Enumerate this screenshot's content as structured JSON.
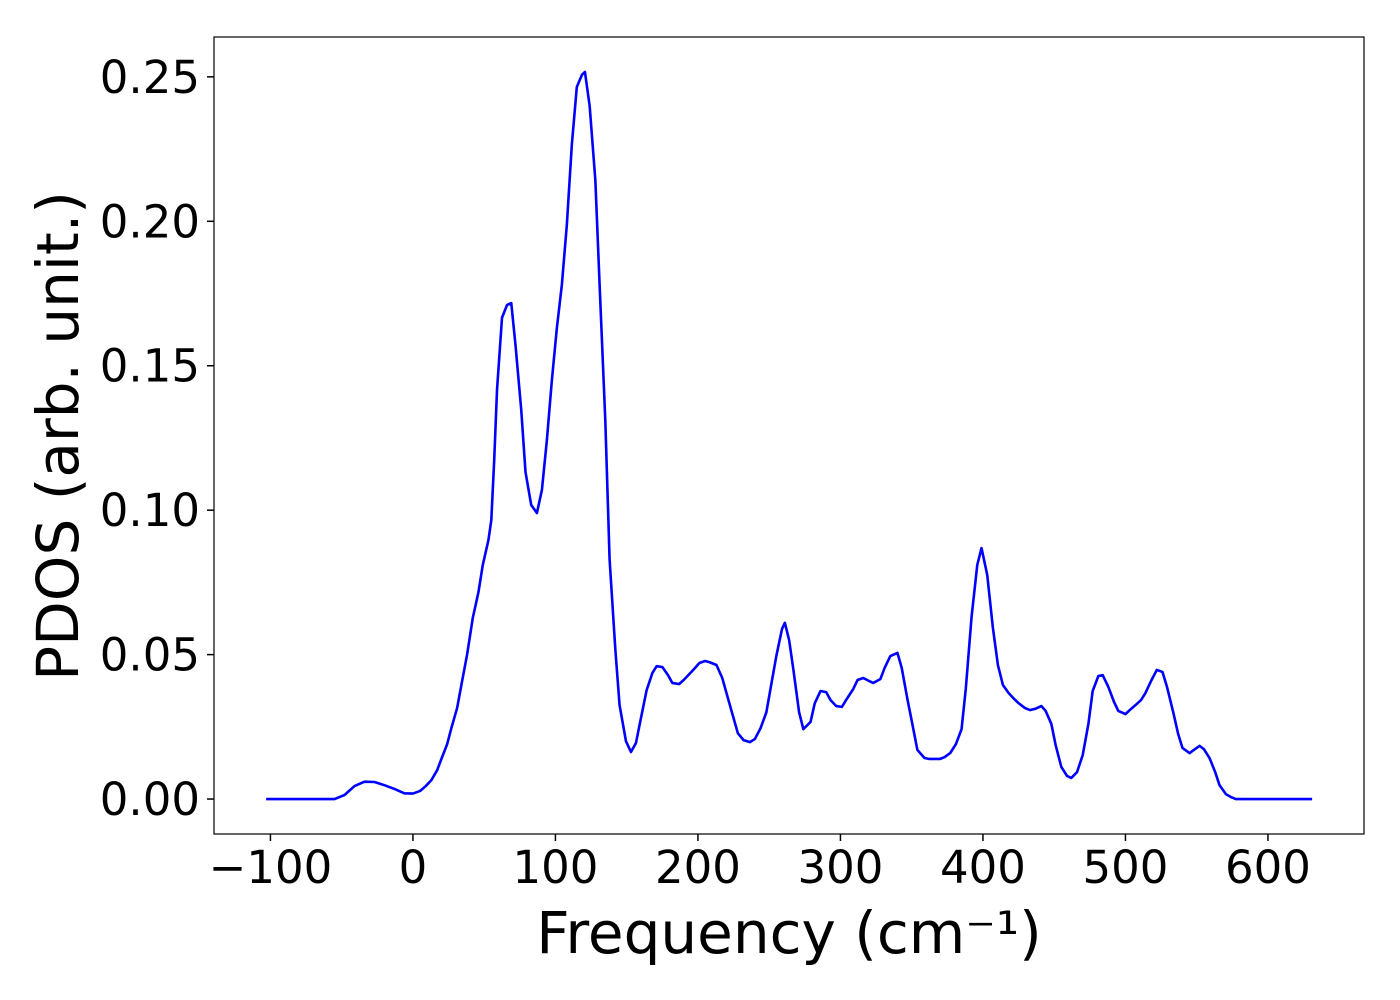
{
  "chart_data": {
    "type": "line",
    "x_label": "Frequency (cm⁻¹)",
    "y_label": "PDOS (arb. unit.)",
    "x": [
      -103,
      -55,
      -48,
      -41,
      -34,
      -27,
      -20,
      -13,
      -6,
      0,
      5,
      9,
      13,
      17,
      20,
      24,
      27,
      31,
      34,
      38,
      42,
      46,
      49,
      53,
      55,
      57,
      59,
      62.5,
      66,
      69,
      72,
      76,
      79,
      83,
      87,
      90.5,
      94,
      97.5,
      101,
      104.5,
      108,
      111.5,
      115,
      118.6,
      120.7,
      124,
      128,
      131,
      135,
      138,
      142,
      145,
      149.5,
      153,
      156.5,
      160,
      164,
      168,
      171,
      175,
      179,
      182,
      186.7,
      190,
      194,
      198,
      201,
      205,
      208,
      213,
      217,
      221,
      225,
      228,
      232,
      236.5,
      240,
      244,
      248,
      251,
      255,
      259,
      261,
      264,
      267,
      271,
      274,
      279,
      282,
      286,
      290,
      293,
      297,
      301,
      304,
      309,
      312,
      316,
      320,
      323,
      328,
      331,
      335,
      340,
      343,
      347,
      351,
      354,
      359,
      362,
      366,
      370,
      373,
      377,
      381,
      385,
      388,
      392,
      396,
      399,
      403,
      407,
      410.5,
      414,
      418,
      422,
      425,
      429.5,
      433,
      436.5,
      441,
      444,
      448,
      451,
      455,
      459,
      462,
      466,
      470,
      474,
      477,
      481,
      484,
      488,
      492,
      495,
      500,
      503,
      507,
      511,
      514,
      518,
      522,
      526,
      529,
      533.5,
      537,
      540,
      545,
      548,
      552,
      555,
      559,
      563,
      566,
      570.5,
      574,
      577.5,
      631
    ],
    "series": [
      {
        "color": "#0000ff",
        "values": [
          0,
          0,
          0.0014,
          0.0045,
          0.006,
          0.0059,
          0.0048,
          0.0035,
          0.002,
          0.0019,
          0.0028,
          0.0045,
          0.0066,
          0.01,
          0.0139,
          0.019,
          0.0246,
          0.0315,
          0.0395,
          0.05,
          0.0627,
          0.0717,
          0.081,
          0.0897,
          0.0966,
          0.117,
          0.1416,
          0.1666,
          0.171,
          0.1717,
          0.157,
          0.1347,
          0.1132,
          0.1018,
          0.099,
          0.107,
          0.1243,
          0.145,
          0.163,
          0.178,
          0.1988,
          0.2265,
          0.2465,
          0.2507,
          0.2517,
          0.24,
          0.2143,
          0.178,
          0.131,
          0.083,
          0.052,
          0.0325,
          0.02,
          0.0163,
          0.0194,
          0.028,
          0.0377,
          0.0436,
          0.046,
          0.0457,
          0.0429,
          0.0402,
          0.0398,
          0.0412,
          0.0433,
          0.0454,
          0.0471,
          0.0478,
          0.0474,
          0.0464,
          0.042,
          0.035,
          0.028,
          0.0228,
          0.0204,
          0.0197,
          0.0208,
          0.0246,
          0.03,
          0.0384,
          0.0495,
          0.0589,
          0.061,
          0.055,
          0.0447,
          0.03,
          0.0242,
          0.0267,
          0.0332,
          0.0374,
          0.037,
          0.0343,
          0.0322,
          0.0319,
          0.0343,
          0.0381,
          0.0412,
          0.0419,
          0.0409,
          0.0402,
          0.0415,
          0.0454,
          0.0495,
          0.0506,
          0.0454,
          0.0346,
          0.0246,
          0.017,
          0.0142,
          0.0139,
          0.0139,
          0.0139,
          0.0145,
          0.0159,
          0.019,
          0.0242,
          0.0384,
          0.063,
          0.081,
          0.0869,
          0.0776,
          0.0592,
          0.0464,
          0.0395,
          0.0367,
          0.0346,
          0.0332,
          0.0315,
          0.0308,
          0.0312,
          0.0322,
          0.0305,
          0.026,
          0.0187,
          0.0111,
          0.008,
          0.0073,
          0.0093,
          0.0152,
          0.026,
          0.0374,
          0.0426,
          0.0429,
          0.0388,
          0.0336,
          0.0305,
          0.0294,
          0.0308,
          0.0325,
          0.0343,
          0.0367,
          0.0409,
          0.0447,
          0.044,
          0.0391,
          0.0301,
          0.0225,
          0.0177,
          0.0159,
          0.017,
          0.0184,
          0.0173,
          0.0142,
          0.0093,
          0.0048,
          0.0017,
          0.0007,
          0,
          0
        ]
      }
    ],
    "xlim": [
      -139.6,
      667.4
    ],
    "ylim": [
      -0.0121,
      0.2638
    ],
    "xticks": [
      {
        "value": -100,
        "label": "−100"
      },
      0,
      100,
      200,
      300,
      400,
      500,
      600
    ],
    "yticks": [
      {
        "value": 0,
        "label": "0.00"
      },
      {
        "value": 0.05,
        "label": "0.05"
      },
      {
        "value": 0.1,
        "label": "0.10"
      },
      {
        "value": 0.15,
        "label": "0.15"
      },
      {
        "value": 0.2,
        "label": "0.20"
      },
      {
        "value": 0.25,
        "label": "0.25"
      }
    ],
    "grid": false
  }
}
